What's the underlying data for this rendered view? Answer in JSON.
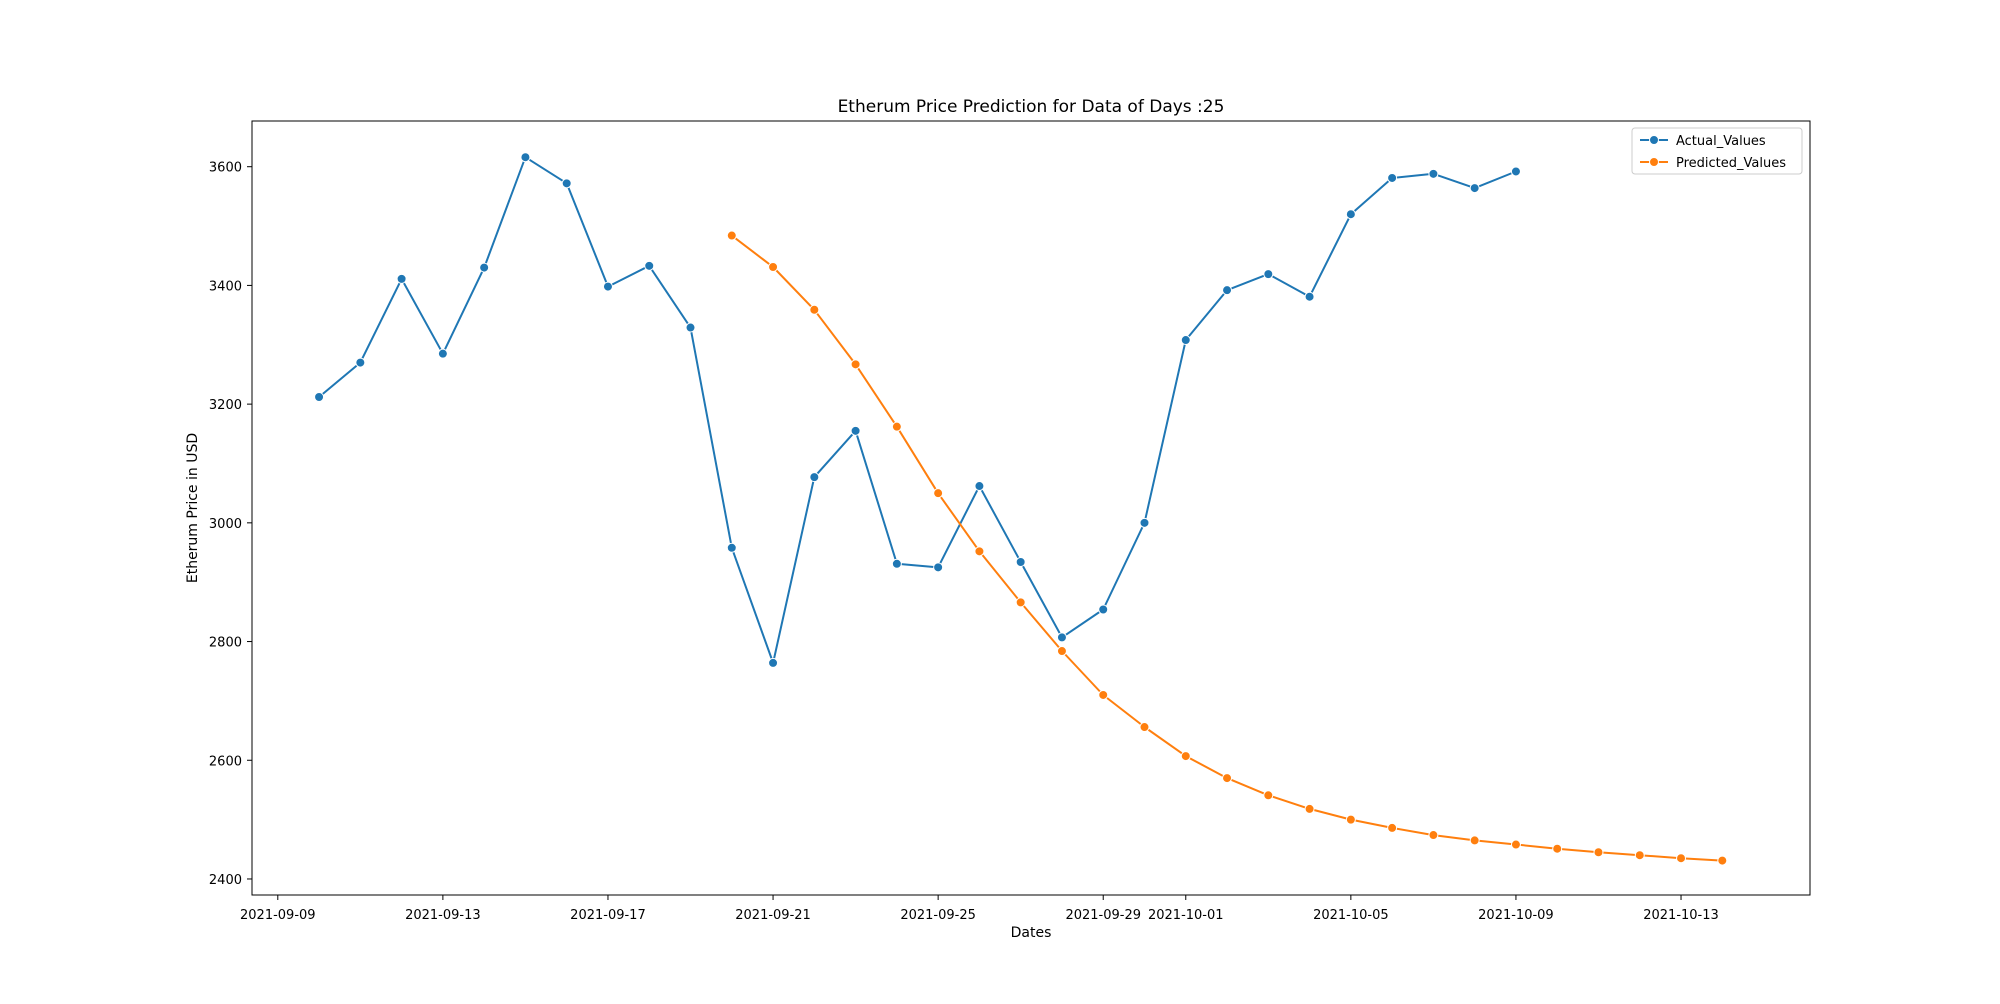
{
  "chart_data": {
    "type": "line",
    "title": "Etherum Price Prediction for Data of Days :25",
    "xlabel": "Dates",
    "ylabel": "Etherum Price in USD",
    "x_axis_type": "date",
    "xlim": [
      "2021-09-08T09:00",
      "2021-10-16T03:00"
    ],
    "ylim": [
      2373,
      3677
    ],
    "x_ticks": [
      "2021-09-09",
      "2021-09-13",
      "2021-09-17",
      "2021-09-21",
      "2021-09-25",
      "2021-09-29",
      "2021-10-01",
      "2021-10-05",
      "2021-10-09",
      "2021-10-13"
    ],
    "y_ticks": [
      2400,
      2600,
      2800,
      3000,
      3200,
      3400,
      3600
    ],
    "grid": false,
    "legend_position": "top-right",
    "series": [
      {
        "name": "Actual_Values",
        "color": "#1f77b4",
        "marker": "circle",
        "points": [
          {
            "x": "2021-09-10",
            "y": 3212
          },
          {
            "x": "2021-09-11",
            "y": 3270
          },
          {
            "x": "2021-09-12",
            "y": 3411
          },
          {
            "x": "2021-09-13",
            "y": 3285
          },
          {
            "x": "2021-09-14",
            "y": 3430
          },
          {
            "x": "2021-09-15",
            "y": 3616
          },
          {
            "x": "2021-09-16",
            "y": 3572
          },
          {
            "x": "2021-09-17",
            "y": 3398
          },
          {
            "x": "2021-09-18",
            "y": 3433
          },
          {
            "x": "2021-09-19",
            "y": 3329
          },
          {
            "x": "2021-09-20",
            "y": 2958
          },
          {
            "x": "2021-09-21",
            "y": 2764
          },
          {
            "x": "2021-09-22",
            "y": 3077
          },
          {
            "x": "2021-09-23",
            "y": 3155
          },
          {
            "x": "2021-09-24",
            "y": 2931
          },
          {
            "x": "2021-09-25",
            "y": 2925
          },
          {
            "x": "2021-09-26",
            "y": 3062
          },
          {
            "x": "2021-09-27",
            "y": 2934
          },
          {
            "x": "2021-09-28",
            "y": 2807
          },
          {
            "x": "2021-09-29",
            "y": 2854
          },
          {
            "x": "2021-09-30",
            "y": 3000
          },
          {
            "x": "2021-10-01",
            "y": 3308
          },
          {
            "x": "2021-10-02",
            "y": 3392
          },
          {
            "x": "2021-10-03",
            "y": 3419
          },
          {
            "x": "2021-10-04",
            "y": 3381
          },
          {
            "x": "2021-10-05",
            "y": 3520
          },
          {
            "x": "2021-10-06",
            "y": 3581
          },
          {
            "x": "2021-10-07",
            "y": 3588
          },
          {
            "x": "2021-10-08",
            "y": 3564
          },
          {
            "x": "2021-10-09",
            "y": 3592
          }
        ]
      },
      {
        "name": "Predicted_Values",
        "color": "#ff7f0e",
        "marker": "circle",
        "points": [
          {
            "x": "2021-09-20",
            "y": 3484
          },
          {
            "x": "2021-09-21",
            "y": 3431
          },
          {
            "x": "2021-09-22",
            "y": 3359
          },
          {
            "x": "2021-09-23",
            "y": 3267
          },
          {
            "x": "2021-09-24",
            "y": 3162
          },
          {
            "x": "2021-09-25",
            "y": 3050
          },
          {
            "x": "2021-09-26",
            "y": 2952
          },
          {
            "x": "2021-09-27",
            "y": 2866
          },
          {
            "x": "2021-09-28",
            "y": 2784
          },
          {
            "x": "2021-09-29",
            "y": 2710
          },
          {
            "x": "2021-09-30",
            "y": 2656
          },
          {
            "x": "2021-10-01",
            "y": 2607
          },
          {
            "x": "2021-10-02",
            "y": 2570
          },
          {
            "x": "2021-10-03",
            "y": 2541
          },
          {
            "x": "2021-10-04",
            "y": 2518
          },
          {
            "x": "2021-10-05",
            "y": 2500
          },
          {
            "x": "2021-10-06",
            "y": 2486
          },
          {
            "x": "2021-10-07",
            "y": 2474
          },
          {
            "x": "2021-10-08",
            "y": 2465
          },
          {
            "x": "2021-10-09",
            "y": 2458
          },
          {
            "x": "2021-10-10",
            "y": 2451
          },
          {
            "x": "2021-10-11",
            "y": 2445
          },
          {
            "x": "2021-10-12",
            "y": 2440
          },
          {
            "x": "2021-10-13",
            "y": 2435
          },
          {
            "x": "2021-10-14",
            "y": 2431
          }
        ]
      }
    ]
  }
}
